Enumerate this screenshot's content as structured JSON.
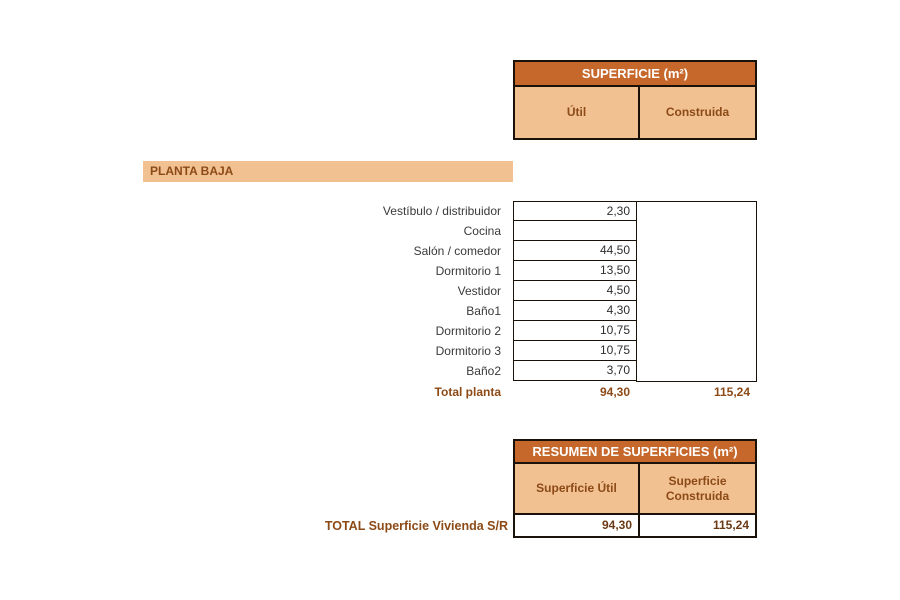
{
  "colors": {
    "header_bg": "#C6682B",
    "header_text": "#FFFFFF",
    "band_bg": "#F2C191",
    "brown_text": "#8C4A17",
    "summary_value_text": "#6B3A14",
    "cell_text": "#2E2E2E",
    "border": "#1A1208",
    "page_bg": "#FFFFFF"
  },
  "top_table": {
    "title": "SUPERFICIE (m²)",
    "columns": [
      "Útil",
      "Construida"
    ]
  },
  "section": {
    "title": "PLANTA BAJA"
  },
  "rooms": [
    {
      "label": "Vestíbulo / distribuidor",
      "util": "2,30"
    },
    {
      "label": "Cocina",
      "util": ""
    },
    {
      "label": "Salón / comedor",
      "util": "44,50"
    },
    {
      "label": "Dormitorio 1",
      "util": "13,50"
    },
    {
      "label": "Vestidor",
      "util": "4,50"
    },
    {
      "label": "Baño1",
      "util": "4,30"
    },
    {
      "label": "Dormitorio 2",
      "util": "10,75"
    },
    {
      "label": "Dormitorio 3",
      "util": "10,75"
    },
    {
      "label": "Baño2",
      "util": "3,70"
    }
  ],
  "total_planta": {
    "label": "Total planta",
    "util": "94,30",
    "construida": "115,24"
  },
  "summary_table": {
    "title": "RESUMEN DE SUPERFICIES (m²)",
    "columns": [
      "Superficie Útil",
      "Superficie Construida"
    ],
    "total_row": {
      "label": "TOTAL Superficie Vivienda S/R",
      "util": "94,30",
      "construida": "115,24"
    }
  }
}
